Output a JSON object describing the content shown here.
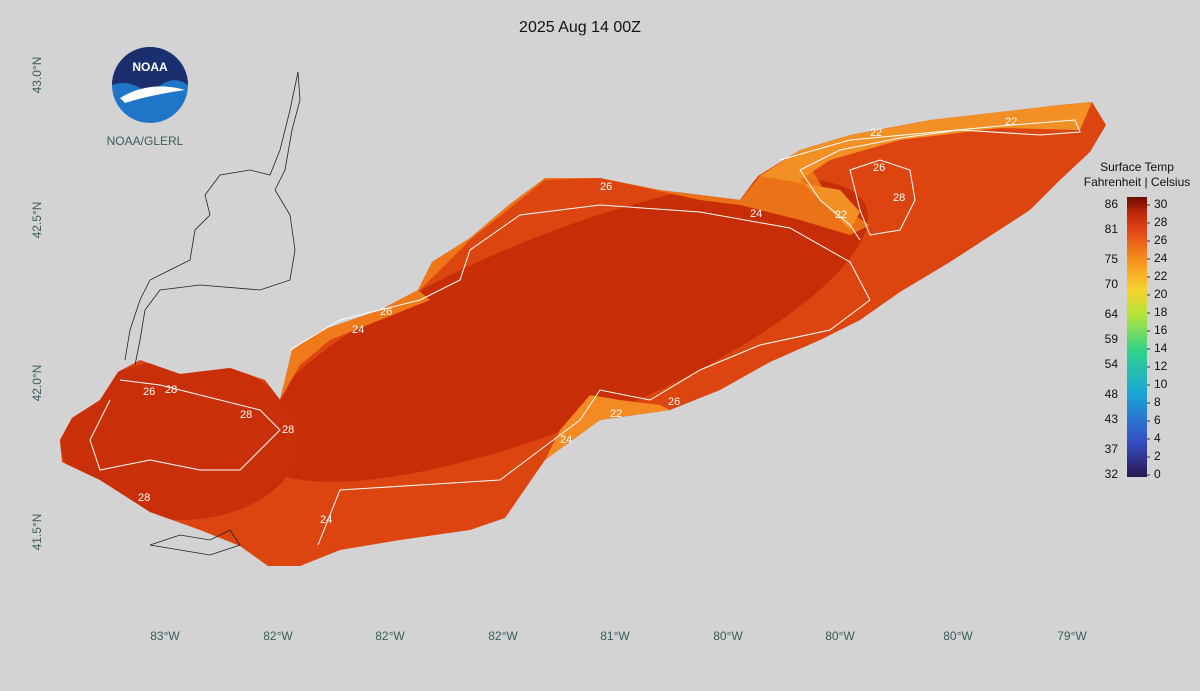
{
  "title": "2025 Aug 14 00Z",
  "logo": {
    "text": "NOAA",
    "caption": "NOAA/GLERL"
  },
  "map": {
    "lat_labels": [
      "43.0°N",
      "42.5°N",
      "42.0°N",
      "41.5°N"
    ],
    "lon_labels": [
      "83°W",
      "82°W",
      "82°W",
      "82°W",
      "81°W",
      "80°W",
      "80°W",
      "80°W",
      "79°W"
    ],
    "contour_labels": [
      "26",
      "28",
      "28",
      "28",
      "24",
      "24",
      "26",
      "24",
      "22",
      "26",
      "22",
      "22",
      "26",
      "28",
      "24",
      "22",
      "26",
      "28"
    ]
  },
  "colorbar": {
    "title": "Surface Temp",
    "subtitle": "Fahrenheit | Celsius",
    "fahrenheit": [
      86,
      81,
      75,
      70,
      64,
      59,
      54,
      48,
      43,
      37,
      32
    ],
    "celsius": [
      30,
      28,
      26,
      24,
      22,
      20,
      18,
      16,
      14,
      12,
      10,
      8,
      6,
      4,
      2,
      0
    ]
  }
}
